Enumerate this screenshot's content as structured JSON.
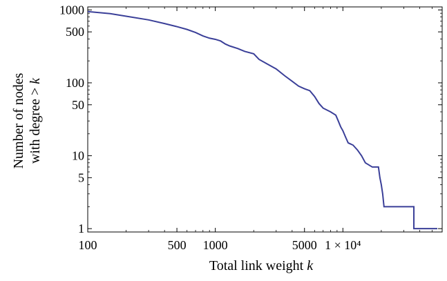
{
  "chart_data": {
    "type": "line",
    "title": "",
    "xlabel": "Total link weight k",
    "xlabel_main": "Total link weight ",
    "xlabel_var": "k",
    "ylabel": "Number of nodes with degree > k",
    "ylabel_line1": "Number of nodes",
    "ylabel_line2_main": "with degree > ",
    "ylabel_line2_var": "k",
    "x_scale": "log",
    "y_scale": "log",
    "xlim": [
      100,
      60000
    ],
    "ylim": [
      0.9,
      1100
    ],
    "x_ticks": [
      {
        "value": 100,
        "label": "100"
      },
      {
        "value": 500,
        "label": "500"
      },
      {
        "value": 1000,
        "label": "1000"
      },
      {
        "value": 5000,
        "label": "5000"
      },
      {
        "value": 10000,
        "label": "1 × 10⁴"
      }
    ],
    "y_ticks": [
      {
        "value": 1,
        "label": "1"
      },
      {
        "value": 5,
        "label": "5"
      },
      {
        "value": 10,
        "label": "10"
      },
      {
        "value": 50,
        "label": "50"
      },
      {
        "value": 100,
        "label": "100"
      },
      {
        "value": 500,
        "label": "500"
      },
      {
        "value": 1000,
        "label": "1000"
      }
    ],
    "grid": false,
    "line_color": "#3a3f98",
    "series": [
      {
        "values": [
          [
            100,
            950
          ],
          [
            150,
            890
          ],
          [
            200,
            820
          ],
          [
            300,
            730
          ],
          [
            400,
            650
          ],
          [
            500,
            590
          ],
          [
            600,
            540
          ],
          [
            700,
            490
          ],
          [
            800,
            440
          ],
          [
            900,
            410
          ],
          [
            1000,
            395
          ],
          [
            1100,
            375
          ],
          [
            1200,
            340
          ],
          [
            1300,
            320
          ],
          [
            1500,
            295
          ],
          [
            1700,
            270
          ],
          [
            2000,
            250
          ],
          [
            2200,
            210
          ],
          [
            2500,
            185
          ],
          [
            3000,
            155
          ],
          [
            3500,
            125
          ],
          [
            4000,
            105
          ],
          [
            4500,
            90
          ],
          [
            5000,
            83
          ],
          [
            5500,
            78
          ],
          [
            6000,
            65
          ],
          [
            6500,
            52
          ],
          [
            7000,
            45
          ],
          [
            8000,
            40
          ],
          [
            8800,
            36
          ],
          [
            9200,
            30
          ],
          [
            9600,
            25
          ],
          [
            10000,
            22
          ],
          [
            10500,
            18
          ],
          [
            11000,
            15
          ],
          [
            12000,
            14
          ],
          [
            13000,
            12
          ],
          [
            14000,
            10
          ],
          [
            15000,
            8
          ],
          [
            17000,
            7
          ],
          [
            19000,
            7
          ],
          [
            19500,
            5
          ],
          [
            20000,
            4
          ],
          [
            20500,
            3
          ],
          [
            21000,
            2
          ],
          [
            22000,
            2
          ],
          [
            36000,
            2
          ],
          [
            36000,
            1
          ],
          [
            55000,
            1
          ]
        ]
      }
    ]
  }
}
